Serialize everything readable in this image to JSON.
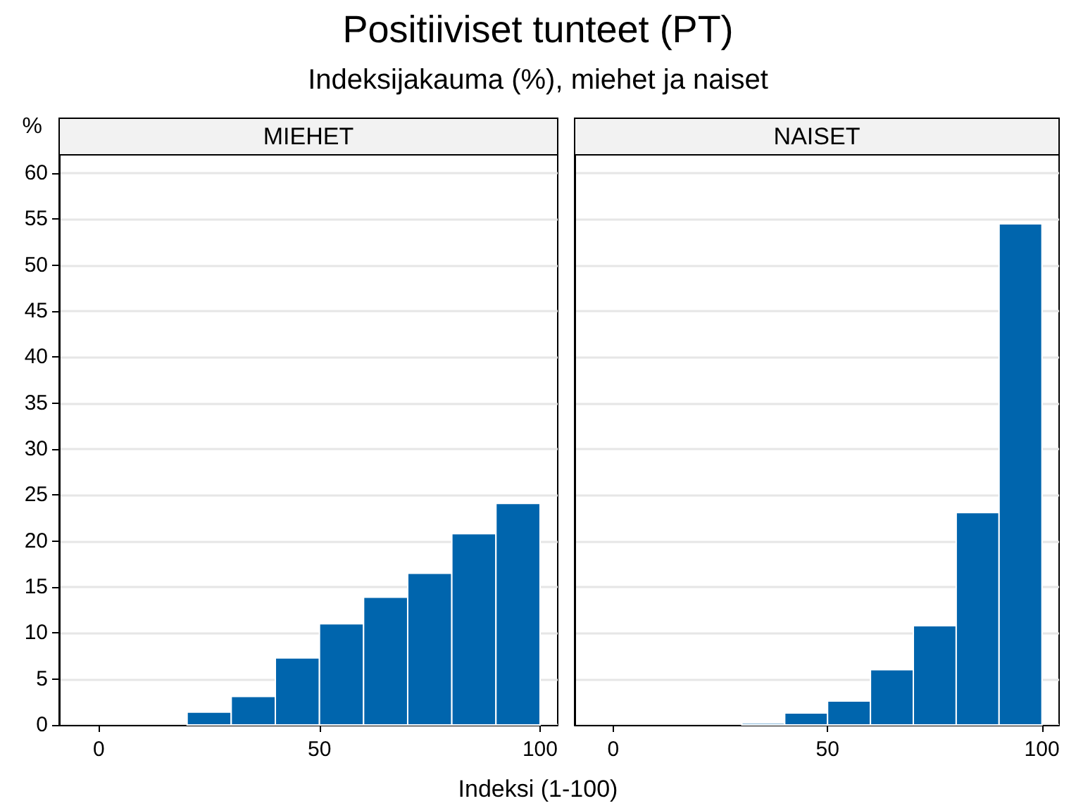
{
  "chart_data": [
    {
      "type": "histogram",
      "title": "MIEHET",
      "annotations": [
        "Positiiviset tunteet (PT)",
        "Indeksijakauma (%), miehet ja naiset"
      ],
      "ylabel": "%",
      "xlabel": "Indeksi (1-100)",
      "color": "#0065ad",
      "bins": [
        0,
        10,
        20,
        30,
        40,
        50,
        60,
        70,
        80,
        90,
        100
      ],
      "values": [
        0,
        0,
        1.4,
        3.1,
        7.3,
        11.0,
        13.9,
        16.5,
        20.8,
        24.1
      ],
      "xlim": [
        -9,
        104
      ],
      "xticks": [
        0,
        50,
        100
      ],
      "ylim": [
        0,
        62
      ],
      "yticks": [
        0,
        5,
        10,
        15,
        20,
        25,
        30,
        35,
        40,
        45,
        50,
        55,
        60
      ],
      "grid": "y"
    },
    {
      "type": "histogram",
      "title": "NAISET",
      "color": "#0065ad",
      "bins": [
        0,
        10,
        20,
        30,
        40,
        50,
        60,
        70,
        80,
        90,
        100
      ],
      "values": [
        0,
        0,
        0,
        0.2,
        1.3,
        2.6,
        6.0,
        10.8,
        23.1,
        54.5
      ],
      "xlim": [
        -9,
        104
      ],
      "xticks": [
        0,
        50,
        100
      ],
      "ylim": [
        0,
        62
      ],
      "yticks": [
        0,
        5,
        10,
        15,
        20,
        25,
        30,
        35,
        40,
        45,
        50,
        55,
        60
      ],
      "grid": "y",
      "tick_labels": "x"
    }
  ]
}
